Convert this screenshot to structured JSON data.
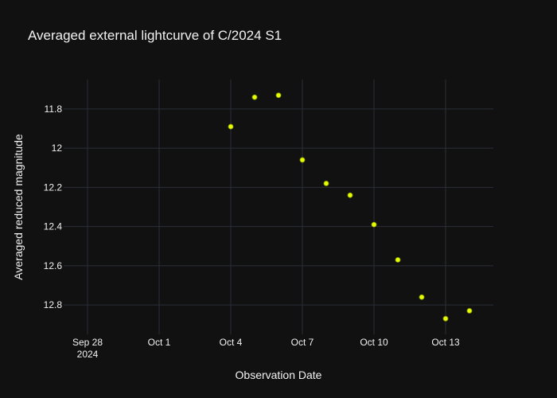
{
  "chart_data": {
    "type": "scatter",
    "title": "Averaged external lightcurve of C/2024 S1",
    "xlabel": "Observation Date",
    "ylabel": "Averaged reduced magnitude",
    "x": [
      "2024-10-04",
      "2024-10-05",
      "2024-10-06",
      "2024-10-07",
      "2024-10-08",
      "2024-10-09",
      "2024-10-10",
      "2024-10-11",
      "2024-10-12",
      "2024-10-13",
      "2024-10-14"
    ],
    "y": [
      11.89,
      11.74,
      11.73,
      12.06,
      12.18,
      12.24,
      12.39,
      12.57,
      12.76,
      12.87,
      12.83
    ],
    "x_range": [
      "2024-09-27",
      "2024-10-15"
    ],
    "ylim": [
      12.95,
      11.65
    ],
    "y_reversed": true,
    "x_ticks": [
      {
        "value": "2024-09-28",
        "label": "Sep 28",
        "sublabel": "2024"
      },
      {
        "value": "2024-10-01",
        "label": "Oct 1",
        "sublabel": ""
      },
      {
        "value": "2024-10-04",
        "label": "Oct 4",
        "sublabel": ""
      },
      {
        "value": "2024-10-07",
        "label": "Oct 7",
        "sublabel": ""
      },
      {
        "value": "2024-10-10",
        "label": "Oct 10",
        "sublabel": ""
      },
      {
        "value": "2024-10-13",
        "label": "Oct 13",
        "sublabel": ""
      }
    ],
    "y_ticks": [
      {
        "value": 11.8,
        "label": "11.8"
      },
      {
        "value": 12.0,
        "label": "12"
      },
      {
        "value": 12.2,
        "label": "12.2"
      },
      {
        "value": 12.4,
        "label": "12.4"
      },
      {
        "value": 12.6,
        "label": "12.6"
      },
      {
        "value": 12.8,
        "label": "12.8"
      }
    ],
    "grid": true,
    "marker_color": "#e6ff00",
    "marker_edge_color": "#8a9a00"
  }
}
